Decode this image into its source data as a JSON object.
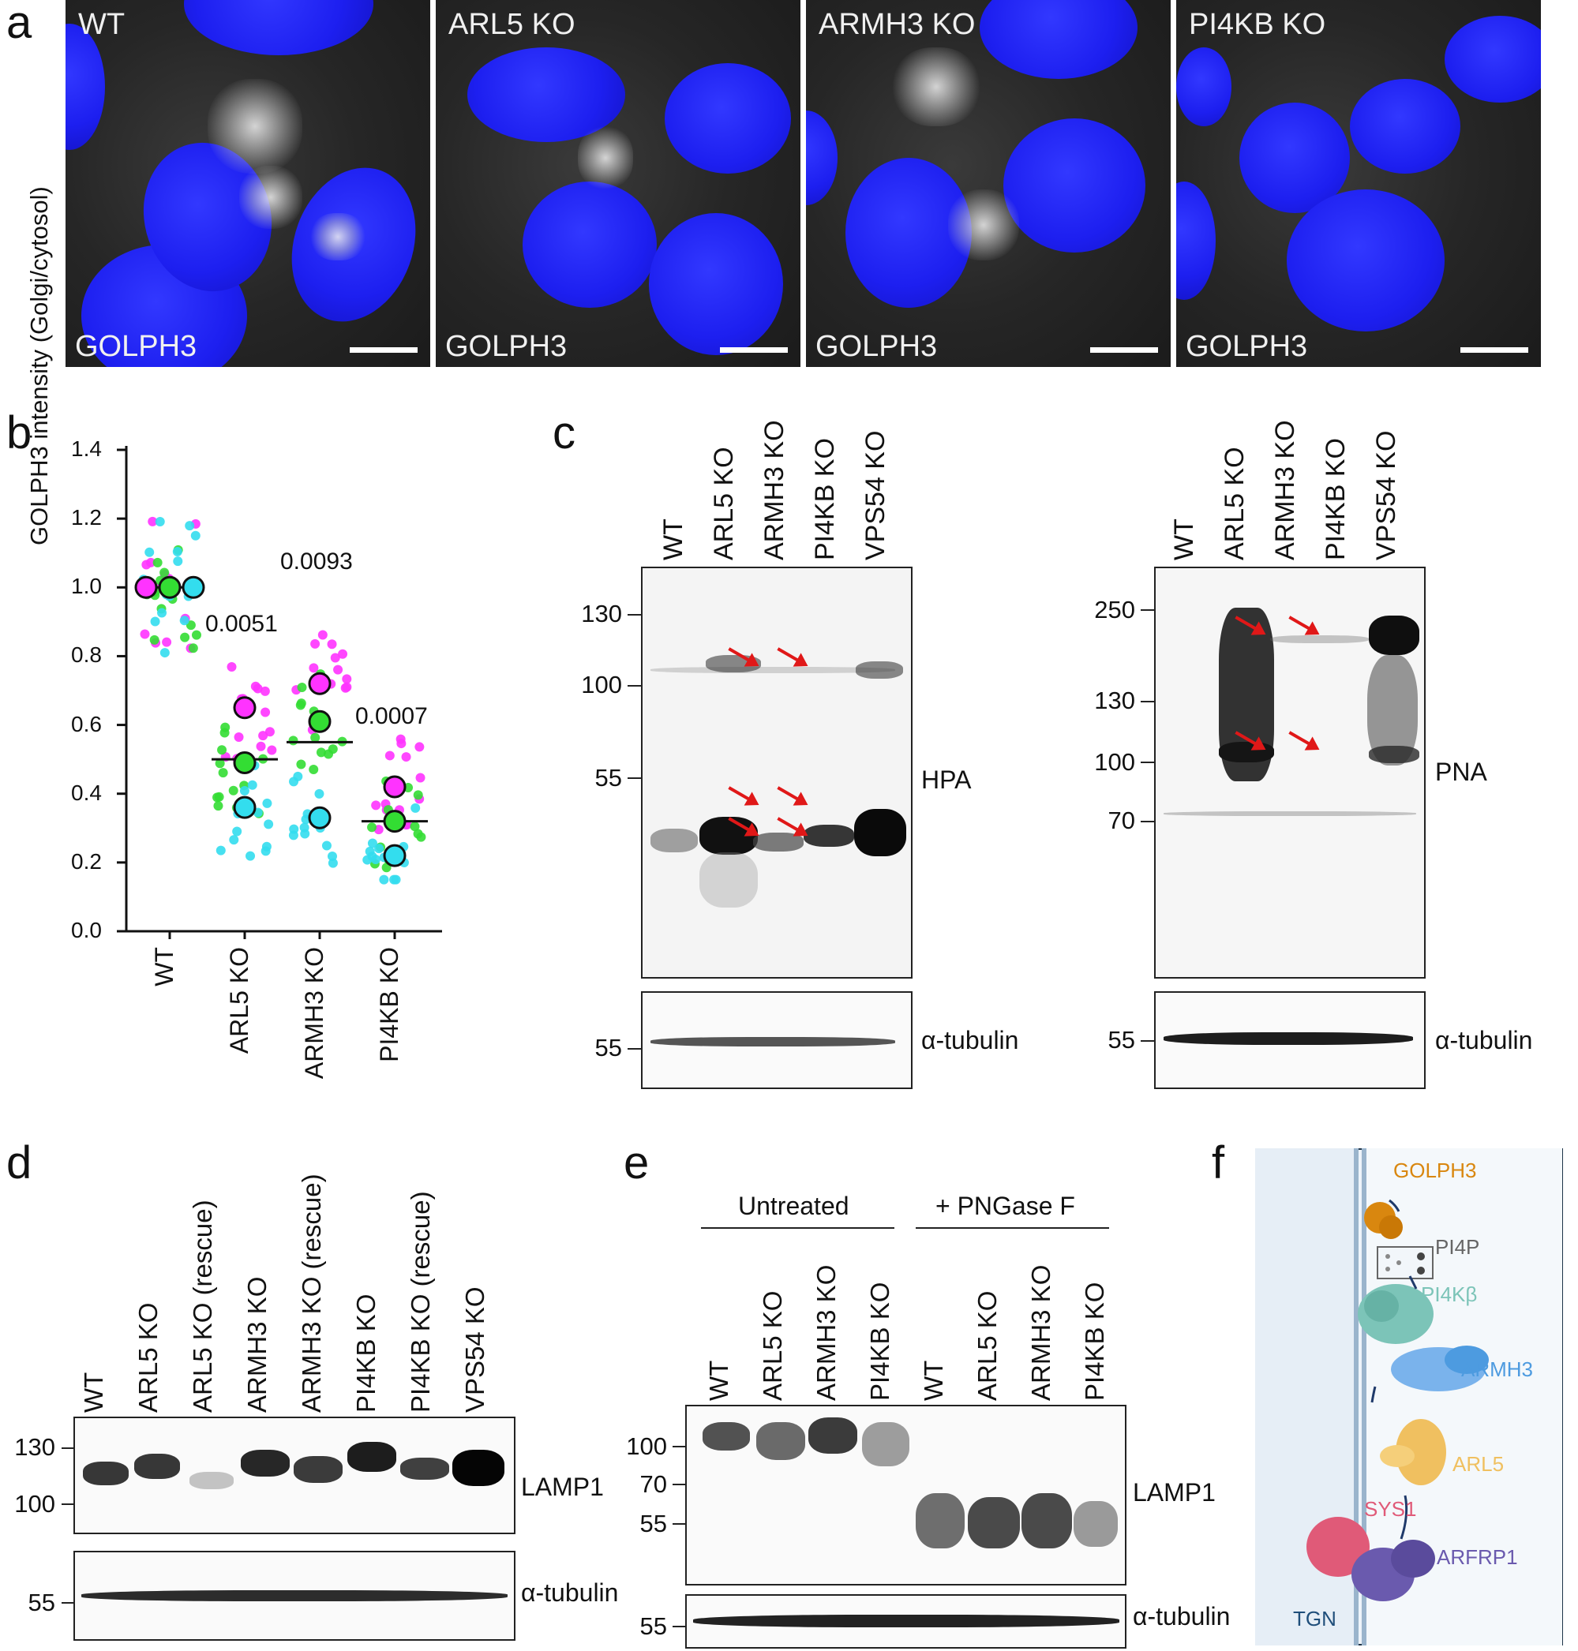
{
  "panel_labels": {
    "a": "a",
    "b": "b",
    "c": "c",
    "d": "d",
    "e": "e",
    "f": "f"
  },
  "panel_a": {
    "images": [
      {
        "title": "WT",
        "stain": "GOLPH3"
      },
      {
        "title": "ARL5 KO",
        "stain": "GOLPH3"
      },
      {
        "title": "ARMH3 KO",
        "stain": "GOLPH3"
      },
      {
        "title": "PI4KB KO",
        "stain": "GOLPH3"
      }
    ]
  },
  "chart_data": {
    "type": "scatter",
    "ylabel": "GOLPH3 intensity (Golgi/cytosol)",
    "ylim": [
      0.0,
      1.4
    ],
    "yticks": [
      "0.0",
      "0.2",
      "0.4",
      "0.6",
      "0.8",
      "1.0",
      "1.2",
      "1.4"
    ],
    "categories": [
      "WT",
      "ARL5 KO",
      "ARMH3 KO",
      "PI4KB KO"
    ],
    "replicate_colors": [
      "#ff33ff",
      "#33dd33",
      "#33ddee"
    ],
    "replicate_means": [
      [
        1.0,
        1.0,
        1.0
      ],
      [
        0.65,
        0.49,
        0.36
      ],
      [
        0.72,
        0.61,
        0.33
      ],
      [
        0.42,
        0.32,
        0.22
      ]
    ],
    "overall_means": [
      1.0,
      0.5,
      0.55,
      0.32
    ],
    "p_values": [
      "",
      "0.0051",
      "0.0093",
      "0.0007"
    ],
    "grid": false
  },
  "panel_c": {
    "left": {
      "lanes": [
        "WT",
        "ARL5 KO",
        "ARMH3 KO",
        "PI4KB KO",
        "VPS54 KO"
      ],
      "markers": [
        "130",
        "100",
        "55"
      ],
      "stain": "HPA",
      "loading_marker": "55",
      "loading": "α-tubulin"
    },
    "right": {
      "lanes": [
        "WT",
        "ARL5 KO",
        "ARMH3 KO",
        "PI4KB KO",
        "VPS54 KO"
      ],
      "markers": [
        "250",
        "130",
        "100",
        "70"
      ],
      "stain": "PNA",
      "loading_marker": "55",
      "loading": "α-tubulin"
    }
  },
  "panel_d": {
    "lanes": [
      "WT",
      "ARL5 KO",
      "ARL5 KO (rescue)",
      "ARMH3 KO",
      "ARMH3 KO (rescue)",
      "PI4KB KO",
      "PI4KB KO (rescue)",
      "VPS54 KO"
    ],
    "markers": [
      "130",
      "100"
    ],
    "stain": "LAMP1",
    "loading_marker": "55",
    "loading": "α-tubulin"
  },
  "panel_e": {
    "group_untreated": "Untreated",
    "group_treated": "+ PNGase F",
    "lanes": [
      "WT",
      "ARL5 KO",
      "ARMH3 KO",
      "PI4KB KO",
      "WT",
      "ARL5 KO",
      "ARMH3 KO",
      "PI4KB KO"
    ],
    "markers": [
      "100",
      "70",
      "55"
    ],
    "stain": "LAMP1",
    "loading_marker": "55",
    "loading": "α-tubulin"
  },
  "panel_f": {
    "labels": {
      "golph3": "GOLPH3",
      "pi4p": "PI4P",
      "pi4kb": "PI4Kβ",
      "armh3": "ARMH3",
      "arl5": "ARL5",
      "sys1": "SYS1",
      "arfrp1": "ARFRP1",
      "tgn": "TGN"
    },
    "colors": {
      "golph3": "#d9870f",
      "pi4kb": "#7cc4b8",
      "armh3": "#4d9be0",
      "arl5": "#f0c060",
      "sys1": "#e05a78",
      "arfrp1": "#6a5aae",
      "tgn": "#1f4e7a"
    }
  }
}
